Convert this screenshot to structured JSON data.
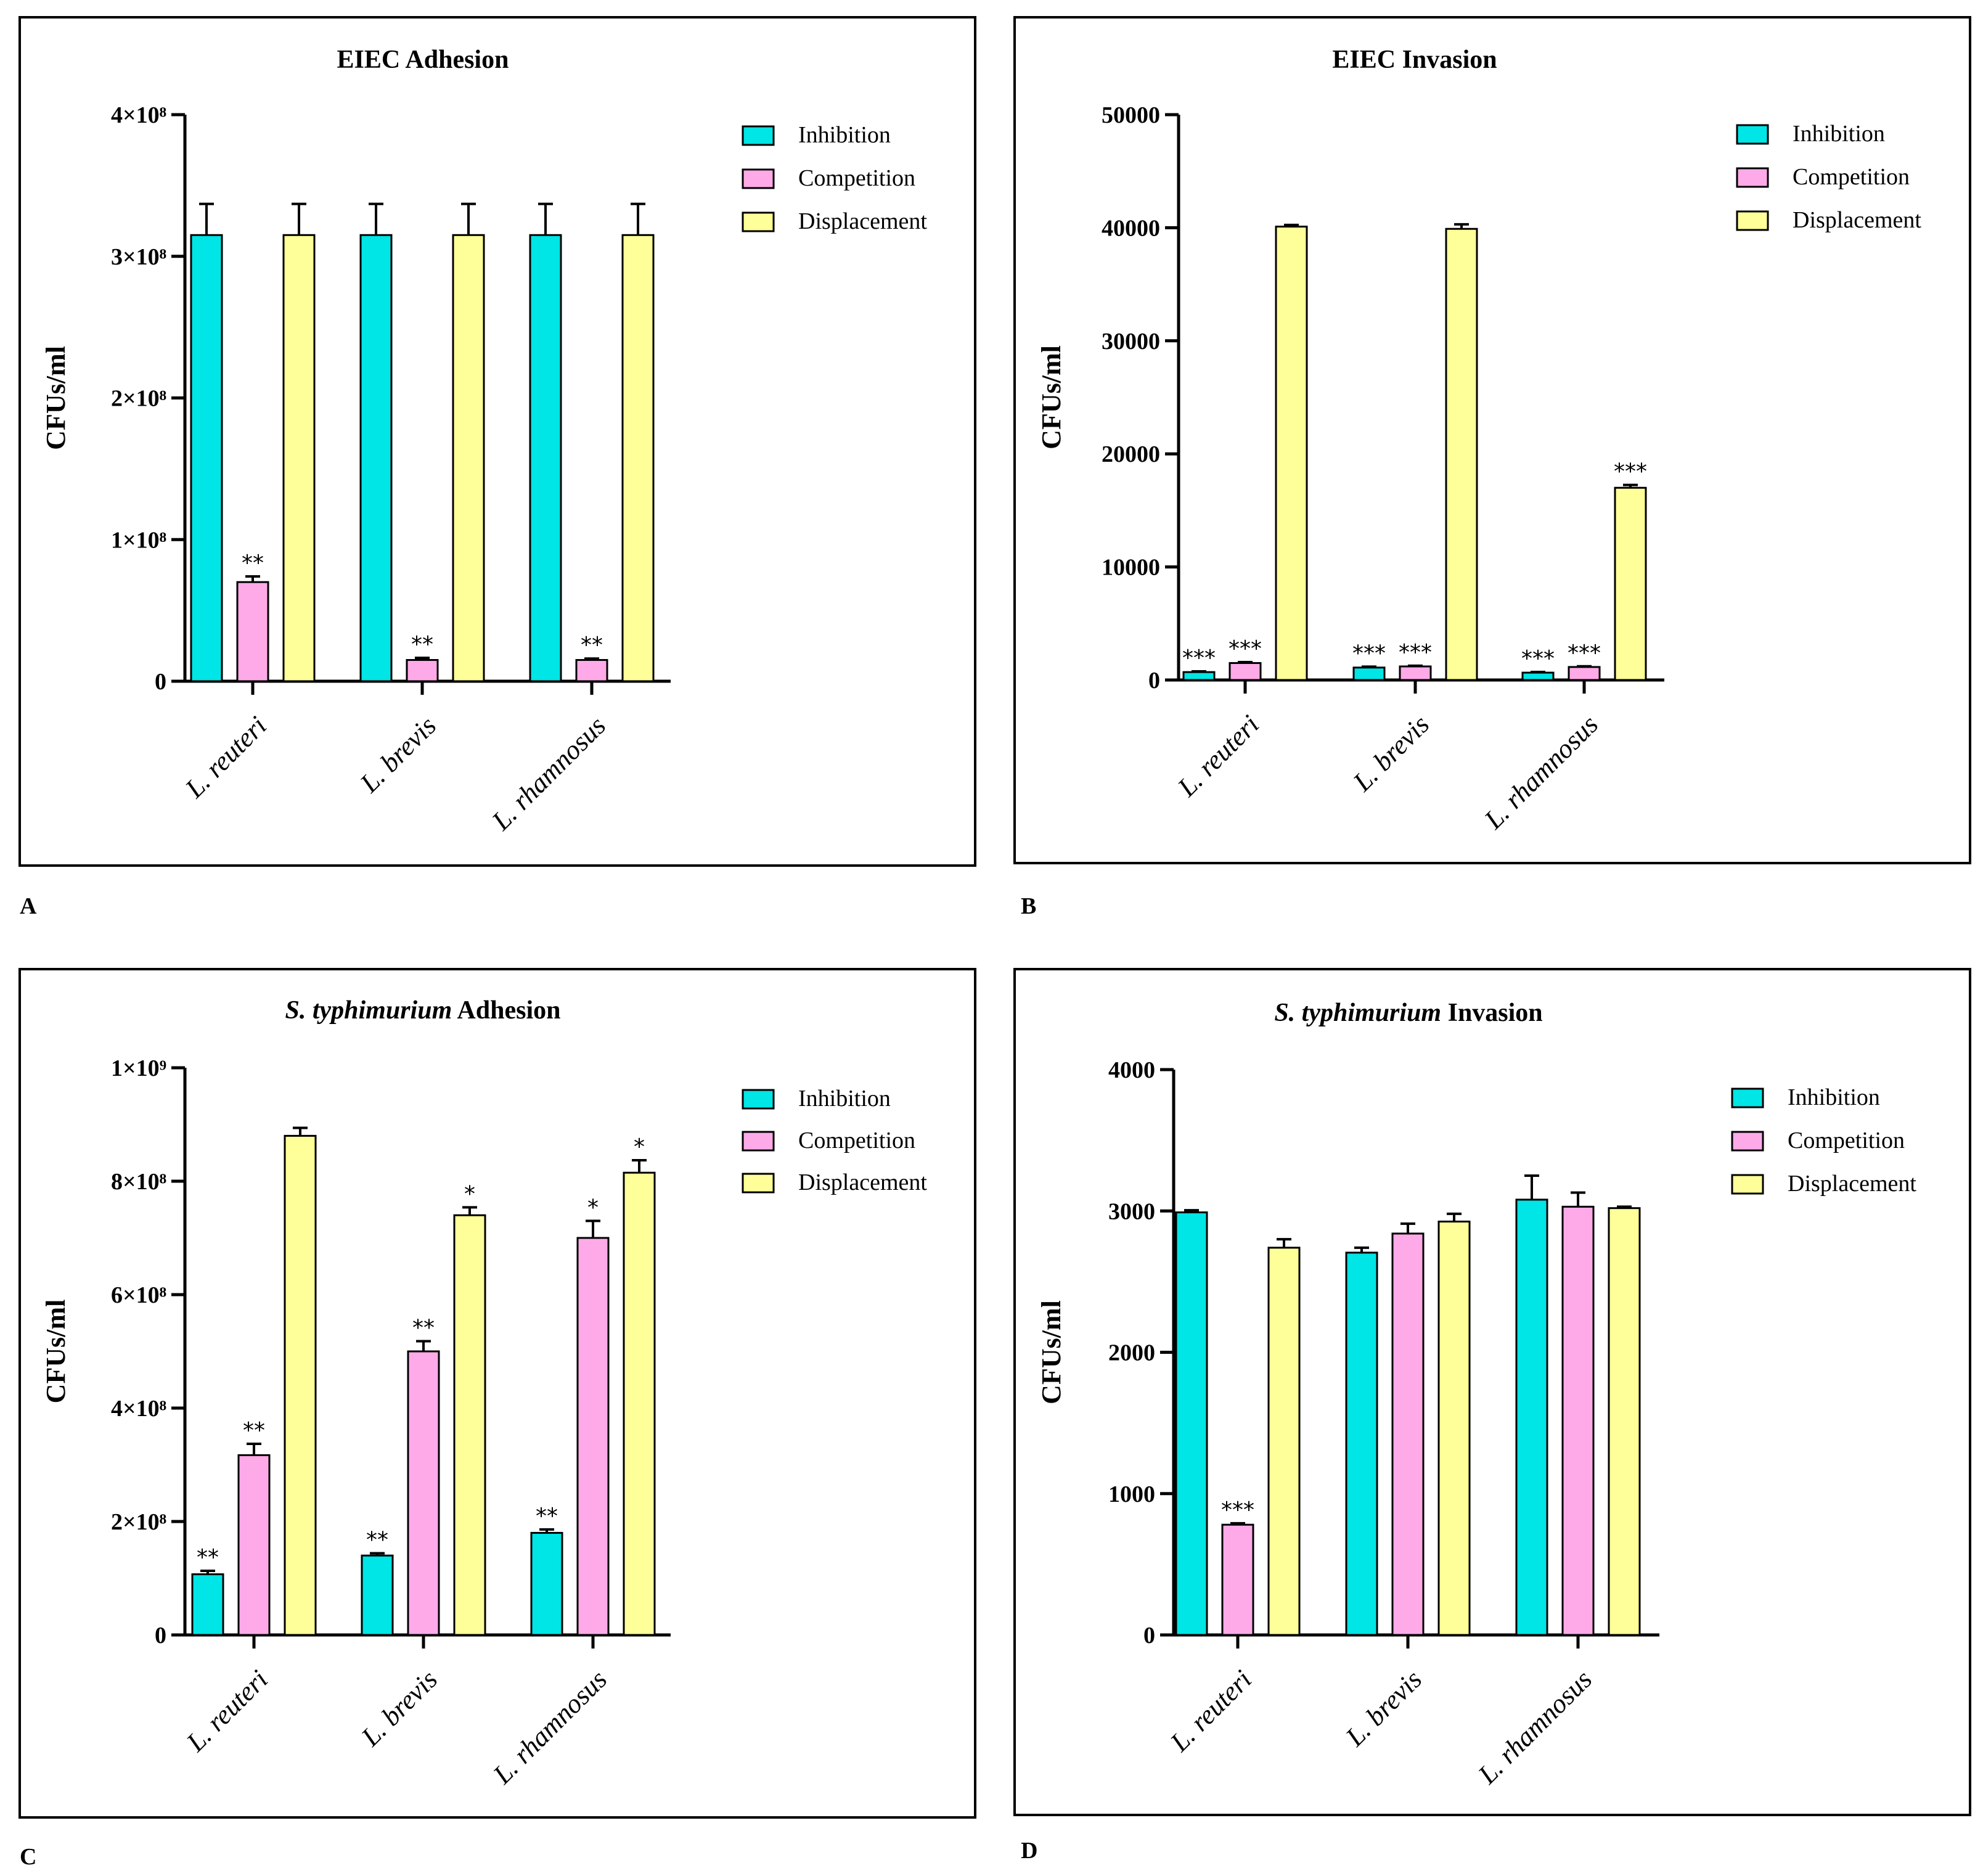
{
  "colors": {
    "inhibition": "#00E5E5",
    "competition": "#FFAAE8",
    "displacement": "#FFFF99",
    "axis": "#000000"
  },
  "legend": [
    "Inhibition",
    "Competition",
    "Displacement"
  ],
  "panel_letters": [
    "A",
    "B",
    "C",
    "D"
  ],
  "chart_data": [
    {
      "id": "A",
      "type": "bar",
      "title": "EIEC Adhesion",
      "title_italic": "",
      "title_rest": "",
      "xlabel": "",
      "ylabel": "CFUs/ml",
      "ylim": [
        0,
        400000000
      ],
      "yticks": [
        0,
        100000000,
        200000000,
        300000000,
        400000000
      ],
      "yticklabels": [
        "0",
        "1×10⁸",
        "2×10⁸",
        "3×10⁸",
        "4×10⁸"
      ],
      "categories": [
        "L. reuteri",
        "L. brevis",
        "L. rhamnosus"
      ],
      "series": [
        {
          "name": "Inhibition",
          "values": [
            315000000,
            315000000,
            315000000
          ],
          "errors": [
            22000000,
            22000000,
            22000000
          ],
          "stars": [
            "",
            "",
            ""
          ]
        },
        {
          "name": "Competition",
          "values": [
            70000000,
            15000000,
            15000000
          ],
          "errors": [
            4000000,
            1500000,
            1000000
          ],
          "stars": [
            "**",
            "**",
            "**"
          ]
        },
        {
          "name": "Displacement",
          "values": [
            315000000,
            315000000,
            315000000
          ],
          "errors": [
            22000000,
            22000000,
            22000000
          ],
          "stars": [
            "",
            "",
            ""
          ]
        }
      ]
    },
    {
      "id": "B",
      "type": "bar",
      "title": "EIEC Invasion",
      "title_italic": "",
      "title_rest": "",
      "xlabel": "",
      "ylabel": "CFUs/ml",
      "ylim": [
        0,
        50000
      ],
      "yticks": [
        0,
        10000,
        20000,
        30000,
        40000,
        50000
      ],
      "yticklabels": [
        "0",
        "10000",
        "20000",
        "30000",
        "40000",
        "50000"
      ],
      "categories": [
        "L. reuteri",
        "L. brevis",
        "L. rhamnosus"
      ],
      "series": [
        {
          "name": "Inhibition",
          "values": [
            700,
            1100,
            650
          ],
          "errors": [
            60,
            80,
            60
          ],
          "stars": [
            "***",
            "***",
            "***"
          ]
        },
        {
          "name": "Competition",
          "values": [
            1500,
            1200,
            1150
          ],
          "errors": [
            80,
            60,
            60
          ],
          "stars": [
            "***",
            "***",
            "***"
          ]
        },
        {
          "name": "Displacement",
          "values": [
            40100,
            39900,
            17000
          ],
          "errors": [
            150,
            400,
            250
          ],
          "stars": [
            "",
            "",
            "***"
          ]
        }
      ]
    },
    {
      "id": "C",
      "type": "bar",
      "title": "",
      "title_italic": "S. typhimurium",
      "title_rest": "Adhesion",
      "xlabel": "",
      "ylabel": "CFUs/ml",
      "ylim": [
        0,
        1000000000
      ],
      "yticks": [
        0,
        200000000,
        400000000,
        600000000,
        800000000,
        1000000000
      ],
      "yticklabels": [
        "0",
        "2×10⁸",
        "4×10⁸",
        "6×10⁸",
        "8×10⁸",
        "1×10⁹"
      ],
      "categories": [
        "L. reuteri",
        "L. brevis",
        "L. rhamnosus"
      ],
      "series": [
        {
          "name": "Inhibition",
          "values": [
            107000000,
            140000000,
            180000000
          ],
          "errors": [
            6000000,
            4000000,
            6000000
          ],
          "stars": [
            "**",
            "**",
            "**"
          ]
        },
        {
          "name": "Competition",
          "values": [
            317000000,
            500000000,
            700000000
          ],
          "errors": [
            20000000,
            18000000,
            30000000
          ],
          "stars": [
            "**",
            "**",
            "*"
          ]
        },
        {
          "name": "Displacement",
          "values": [
            880000000,
            740000000,
            815000000
          ],
          "errors": [
            14000000,
            14000000,
            22000000
          ],
          "stars": [
            "",
            "*",
            "*"
          ]
        }
      ]
    },
    {
      "id": "D",
      "type": "bar",
      "title": "",
      "title_italic": "S. typhimurium",
      "title_rest": "Invasion",
      "xlabel": "",
      "ylabel": "CFUs/ml",
      "ylim": [
        0,
        4000
      ],
      "yticks": [
        0,
        1000,
        2000,
        3000,
        4000
      ],
      "yticklabels": [
        "0",
        "1000",
        "2000",
        "3000",
        "4000"
      ],
      "categories": [
        "L. reuteri",
        "L. brevis",
        "L. rhamnosus"
      ],
      "series": [
        {
          "name": "Inhibition",
          "values": [
            2990,
            2705,
            3080
          ],
          "errors": [
            15,
            35,
            170
          ],
          "stars": [
            "",
            "",
            ""
          ]
        },
        {
          "name": "Competition",
          "values": [
            780,
            2840,
            3030
          ],
          "errors": [
            10,
            70,
            100
          ],
          "stars": [
            "***",
            "",
            ""
          ]
        },
        {
          "name": "Displacement",
          "values": [
            2740,
            2925,
            3020
          ],
          "errors": [
            60,
            55,
            10
          ],
          "stars": [
            "",
            "",
            ""
          ]
        }
      ]
    }
  ]
}
